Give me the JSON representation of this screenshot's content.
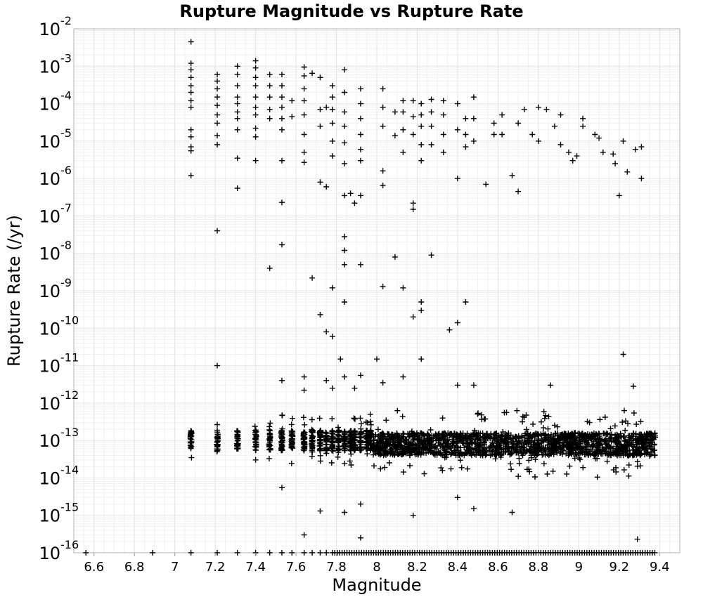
{
  "chart_data": {
    "type": "scatter",
    "title": "Rupture Magnitude vs Rupture Rate",
    "xlabel": "Magnitude",
    "ylabel": "Rupture Rate (/yr)",
    "xlim": [
      6.5,
      9.5
    ],
    "ylim": [
      1e-16,
      0.01
    ],
    "yscale": "log",
    "grid": true,
    "marker": "+",
    "colors": {
      "marker": "#000000",
      "grid": "#e4e4e4",
      "frame": "#b0b0b0",
      "text": "#000000"
    },
    "x_ticks": [
      "6.6",
      "6.8",
      "7",
      "7.2",
      "7.4",
      "7.6",
      "7.8",
      "8",
      "8.2",
      "8.4",
      "8.6",
      "8.8",
      "9",
      "9.2",
      "9.4"
    ],
    "y_ticks": [
      {
        "base": "10",
        "exp": "-16",
        "value": 1e-16
      },
      {
        "base": "10",
        "exp": "-15",
        "value": 1e-15
      },
      {
        "base": "10",
        "exp": "-14",
        "value": 1e-14
      },
      {
        "base": "10",
        "exp": "-13",
        "value": 1e-13
      },
      {
        "base": "10",
        "exp": "-12",
        "value": 1e-12
      },
      {
        "base": "10",
        "exp": "-11",
        "value": 1e-11
      },
      {
        "base": "10",
        "exp": "-10",
        "value": 1e-10
      },
      {
        "base": "10",
        "exp": "-9",
        "value": 1e-09
      },
      {
        "base": "10",
        "exp": "-8",
        "value": 1e-08
      },
      {
        "base": "10",
        "exp": "-7",
        "value": 1e-07
      },
      {
        "base": "10",
        "exp": "-6",
        "value": 1e-06
      },
      {
        "base": "10",
        "exp": "-5",
        "value": 1e-05
      },
      {
        "base": "10",
        "exp": "-4",
        "value": 0.0001
      },
      {
        "base": "10",
        "exp": "-3",
        "value": 0.001
      },
      {
        "base": "10",
        "exp": "-2",
        "value": 0.01
      }
    ],
    "points": [
      [
        7.08,
        0.0045
      ],
      [
        7.08,
        0.0012
      ],
      [
        7.08,
        0.0008
      ],
      [
        7.08,
        0.0005
      ],
      [
        7.08,
        0.0003
      ],
      [
        7.08,
        0.0002
      ],
      [
        7.08,
        0.00012
      ],
      [
        7.08,
        8e-05
      ],
      [
        7.08,
        2e-05
      ],
      [
        7.08,
        1.3e-05
      ],
      [
        7.08,
        7e-06
      ],
      [
        7.08,
        5.5e-06
      ],
      [
        7.08,
        1.2e-06
      ],
      [
        7.21,
        0.0006
      ],
      [
        7.21,
        0.0004
      ],
      [
        7.21,
        0.00025
      ],
      [
        7.21,
        0.00015
      ],
      [
        7.21,
        9e-05
      ],
      [
        7.21,
        5e-05
      ],
      [
        7.21,
        3e-05
      ],
      [
        7.21,
        1.4e-05
      ],
      [
        7.21,
        8e-06
      ],
      [
        7.21,
        4e-08
      ],
      [
        7.21,
        1e-11
      ],
      [
        7.31,
        0.001
      ],
      [
        7.31,
        0.0006
      ],
      [
        7.31,
        0.0003
      ],
      [
        7.31,
        0.00015
      ],
      [
        7.31,
        0.0001
      ],
      [
        7.31,
        6e-05
      ],
      [
        7.31,
        4e-05
      ],
      [
        7.31,
        2e-05
      ],
      [
        7.31,
        3.5e-06
      ],
      [
        7.31,
        5.5e-07
      ],
      [
        7.4,
        0.0014
      ],
      [
        7.4,
        0.0009
      ],
      [
        7.4,
        0.0005
      ],
      [
        7.4,
        0.0003
      ],
      [
        7.4,
        0.00015
      ],
      [
        7.4,
        8e-05
      ],
      [
        7.4,
        5e-05
      ],
      [
        7.4,
        2.2e-05
      ],
      [
        7.4,
        1.3e-05
      ],
      [
        7.4,
        3e-06
      ],
      [
        7.47,
        0.0006
      ],
      [
        7.47,
        0.0003
      ],
      [
        7.47,
        0.00015
      ],
      [
        7.47,
        7e-05
      ],
      [
        7.47,
        4e-05
      ],
      [
        7.47,
        4e-09
      ],
      [
        7.53,
        0.0006
      ],
      [
        7.53,
        0.0003
      ],
      [
        7.53,
        0.00015
      ],
      [
        7.53,
        8e-05
      ],
      [
        7.53,
        4e-05
      ],
      [
        7.53,
        2e-05
      ],
      [
        7.53,
        3e-06
      ],
      [
        7.53,
        2.3e-07
      ],
      [
        7.53,
        1.7e-08
      ],
      [
        7.53,
        4e-12
      ],
      [
        7.53,
        5.5e-15
      ],
      [
        7.58,
        4.5e-05
      ],
      [
        7.58,
        0.00012
      ],
      [
        7.64,
        0.00095
      ],
      [
        7.64,
        0.00055
      ],
      [
        7.64,
        0.00025
      ],
      [
        7.64,
        0.00012
      ],
      [
        7.64,
        5e-05
      ],
      [
        7.64,
        1.5e-05
      ],
      [
        7.64,
        5e-06
      ],
      [
        7.64,
        2.7e-06
      ],
      [
        7.64,
        5e-12
      ],
      [
        7.64,
        2.2e-12
      ],
      [
        7.64,
        3e-16
      ],
      [
        7.68,
        0.00065
      ],
      [
        7.68,
        2.2e-09
      ],
      [
        7.72,
        0.0005
      ],
      [
        7.72,
        7e-05
      ],
      [
        7.72,
        2.5e-05
      ],
      [
        7.72,
        8e-07
      ],
      [
        7.72,
        2.3e-10
      ],
      [
        7.72,
        1.3e-15
      ],
      [
        7.75,
        8e-05
      ],
      [
        7.75,
        6e-07
      ],
      [
        7.75,
        8e-11
      ],
      [
        7.75,
        4e-12
      ],
      [
        7.78,
        0.0003
      ],
      [
        7.78,
        0.00015
      ],
      [
        7.78,
        7e-05
      ],
      [
        7.78,
        3e-05
      ],
      [
        7.78,
        1e-05
      ],
      [
        7.78,
        4e-06
      ],
      [
        7.78,
        1.2e-09
      ],
      [
        7.78,
        6e-11
      ],
      [
        7.78,
        2.5e-12
      ],
      [
        7.82,
        1.5e-11
      ],
      [
        7.84,
        0.0008
      ],
      [
        7.84,
        0.0002
      ],
      [
        7.84,
        6e-05
      ],
      [
        7.84,
        2.5e-05
      ],
      [
        7.84,
        9e-06
      ],
      [
        7.84,
        2.5e-06
      ],
      [
        7.84,
        3.5e-07
      ],
      [
        7.84,
        2.8e-08
      ],
      [
        7.84,
        1.2e-08
      ],
      [
        7.84,
        5e-09
      ],
      [
        7.84,
        5e-10
      ],
      [
        7.84,
        5e-12
      ],
      [
        7.84,
        1.2e-15
      ],
      [
        7.87,
        4e-07
      ],
      [
        7.89,
        2.2e-07
      ],
      [
        7.89,
        2.5e-12
      ],
      [
        7.92,
        0.00025
      ],
      [
        7.92,
        0.0001
      ],
      [
        7.92,
        4e-05
      ],
      [
        7.92,
        1.5e-05
      ],
      [
        7.92,
        6e-06
      ],
      [
        7.92,
        3e-06
      ],
      [
        7.92,
        3.5e-07
      ],
      [
        7.92,
        5e-09
      ],
      [
        7.92,
        5.5e-12
      ],
      [
        7.92,
        2e-15
      ],
      [
        7.92,
        2.5e-16
      ],
      [
        8.0,
        1.5e-11
      ],
      [
        8.03,
        0.00025
      ],
      [
        8.03,
        8e-05
      ],
      [
        8.03,
        2.5e-05
      ],
      [
        8.03,
        1.6e-06
      ],
      [
        8.03,
        6.5e-07
      ],
      [
        8.03,
        1.3e-09
      ],
      [
        8.03,
        3.5e-12
      ],
      [
        8.09,
        6e-05
      ],
      [
        8.09,
        1.4e-05
      ],
      [
        8.09,
        8e-09
      ],
      [
        8.13,
        0.00012
      ],
      [
        8.13,
        6e-05
      ],
      [
        8.13,
        2e-05
      ],
      [
        8.13,
        5e-06
      ],
      [
        8.13,
        1.2e-09
      ],
      [
        8.13,
        5e-12
      ],
      [
        8.18,
        0.00012
      ],
      [
        8.18,
        4.5e-05
      ],
      [
        8.18,
        1.5e-05
      ],
      [
        8.18,
        2.2e-07
      ],
      [
        8.18,
        1.5e-07
      ],
      [
        8.18,
        2e-10
      ],
      [
        8.18,
        1e-15
      ],
      [
        8.22,
        0.0001
      ],
      [
        8.22,
        5e-05
      ],
      [
        8.22,
        2.5e-05
      ],
      [
        8.22,
        8e-06
      ],
      [
        8.22,
        3e-06
      ],
      [
        8.22,
        5e-10
      ],
      [
        8.22,
        3e-10
      ],
      [
        8.22,
        1.5e-11
      ],
      [
        8.27,
        9e-09
      ],
      [
        8.27,
        0.00013
      ],
      [
        8.27,
        6e-05
      ],
      [
        8.27,
        2.5e-05
      ],
      [
        8.27,
        8e-06
      ],
      [
        8.33,
        0.00012
      ],
      [
        8.33,
        5e-05
      ],
      [
        8.33,
        1.5e-05
      ],
      [
        8.33,
        5e-06
      ],
      [
        8.36,
        9e-11
      ],
      [
        8.4,
        0.0001
      ],
      [
        8.4,
        2e-05
      ],
      [
        8.4,
        1e-06
      ],
      [
        8.4,
        1.4e-10
      ],
      [
        8.4,
        3e-12
      ],
      [
        8.4,
        3e-15
      ],
      [
        8.44,
        5e-10
      ],
      [
        8.44,
        4e-05
      ],
      [
        8.44,
        1.5e-05
      ],
      [
        8.44,
        7e-06
      ],
      [
        8.48,
        0.00015
      ],
      [
        8.48,
        4e-05
      ],
      [
        8.48,
        1e-05
      ],
      [
        8.48,
        3e-12
      ],
      [
        8.48,
        1.5e-15
      ],
      [
        8.54,
        7e-07
      ],
      [
        8.58,
        3e-05
      ],
      [
        8.58,
        1.5e-05
      ],
      [
        8.62,
        1.5e-05
      ],
      [
        8.62,
        5e-05
      ],
      [
        8.67,
        1.2e-06
      ],
      [
        8.67,
        1.2e-15
      ],
      [
        8.7,
        4.5e-07
      ],
      [
        8.7,
        3e-05
      ],
      [
        8.73,
        7e-05
      ],
      [
        8.77,
        1.5e-05
      ],
      [
        8.8,
        8e-05
      ],
      [
        8.8,
        1e-05
      ],
      [
        8.84,
        7e-05
      ],
      [
        8.86,
        3e-12
      ],
      [
        8.88,
        2.5e-05
      ],
      [
        8.91,
        5e-05
      ],
      [
        8.91,
        8e-06
      ],
      [
        8.95,
        5e-06
      ],
      [
        8.97,
        3e-06
      ],
      [
        8.99,
        4e-06
      ],
      [
        9.02,
        4e-05
      ],
      [
        9.02,
        2.5e-05
      ],
      [
        9.08,
        1.5e-05
      ],
      [
        9.1,
        1.2e-05
      ],
      [
        9.12,
        5e-06
      ],
      [
        9.17,
        4.5e-06
      ],
      [
        9.18,
        2.5e-06
      ],
      [
        9.2,
        3.5e-07
      ],
      [
        9.22,
        2e-11
      ],
      [
        9.22,
        1e-05
      ],
      [
        9.24,
        1.5e-06
      ],
      [
        9.27,
        2.8e-12
      ],
      [
        9.28,
        6e-06
      ],
      [
        9.29,
        2.3e-16
      ],
      [
        9.31,
        7e-06
      ],
      [
        9.31,
        1e-06
      ]
    ]
  }
}
